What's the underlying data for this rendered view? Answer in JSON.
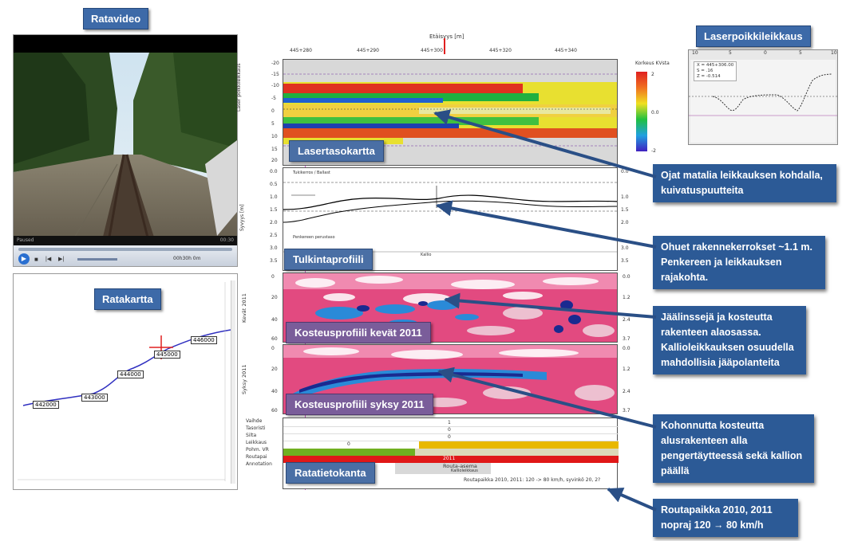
{
  "labels": {
    "ratavideo": "Ratavideo",
    "ratakartta": "Ratakartta",
    "laserpoikkileikkaus": "Laserpoikkileikkaus",
    "lasertasokartta": "Lasertasokartta",
    "tulkintaprofiili": "Tulkintaprofiili",
    "kosteus_kevat": "Kosteusprofiili kevät 2011",
    "kosteus_syksy": "Kosteusprofiili syksy 2011",
    "ratatietokanta": "Ratatietokanta"
  },
  "callouts": [
    "Ojat matalia leikkauksen kohdalla, kuivatuspuutteita",
    "Ohuet rakennekerrokset ~1.1 m. Penkereen ja leikkauksen rajakohta.",
    "Jäälinssejä ja kosteutta rakenteen alaosassa. Kallioleikkauksen osuudella mahdollisia jääpolanteita",
    "Kohonnutta kosteutta alusrakenteen alla pengertäytteessä sekä kallion päällä",
    "Routapaikka 2010, 2011 nopraj 120 → 80 km/h"
  ],
  "video": {
    "status_left": "Paused",
    "status_right": "00:30",
    "speed_label": "00h30h 0m"
  },
  "map": {
    "markers": [
      "442000",
      "443000",
      "444000",
      "445000",
      "446000"
    ]
  },
  "chart_header": {
    "title": "Etäisyys [m]",
    "ticks": [
      "445+280",
      "445+290",
      "445+300",
      "445+320",
      "445+340"
    ]
  },
  "laser_map": {
    "ylabel": "Laser poikkileikkaus",
    "yticks_left": [
      "-20",
      "-15",
      "-10",
      "-5",
      "0",
      "5",
      "10",
      "15",
      "20"
    ],
    "legend_title": "Korkeus KVsta",
    "legend_ticks": [
      "2",
      "0.0",
      "-2"
    ]
  },
  "profile": {
    "ylabel": "Syvyys [m]",
    "yticks": [
      "0.0",
      "0.5",
      "1.0",
      "1.5",
      "2.0",
      "2.5",
      "3.0",
      "3.5"
    ],
    "label_top": "Tukikerros / Ballast",
    "label_mid": "Penkereen perustaso",
    "label_kallio": "Kallio"
  },
  "moist_spring": {
    "ylabel": "Kevät 2011",
    "yticks": [
      "0",
      "20",
      "40",
      "60"
    ],
    "yticks_right": [
      "0.0",
      "1.2",
      "2.4",
      "3.7"
    ]
  },
  "moist_autumn": {
    "ylabel": "Syksy 2011",
    "yticks": [
      "0",
      "20",
      "40",
      "60"
    ],
    "yticks_right": [
      "0.0",
      "1.2",
      "2.4",
      "3.7"
    ]
  },
  "database": {
    "rows": [
      "Vaihde",
      "Tasoristi",
      "Silta",
      "Leikkaus",
      "Pohm. VR",
      "Routapai",
      "Annotation"
    ],
    "values": [
      "1",
      "0",
      "0",
      "0"
    ],
    "red_label": "2011",
    "routa_label": "Routa-asema",
    "kallio_label": "Kallioleikkaus",
    "foot_text": "Routapaikka 2010, 2011: 120 -> 80 km/h, syvinkö 20, 2?"
  },
  "cross_section": {
    "info1": "X = 445+306.00",
    "info2": "S = .16",
    "info3": "Z = -0.514",
    "ticks": [
      "10",
      "5",
      "0",
      "5",
      "10"
    ]
  },
  "colors": {
    "tag_bg": "#3d6aa8",
    "callout_bg": "#2c5a96",
    "arrow": "#2a4f86"
  }
}
